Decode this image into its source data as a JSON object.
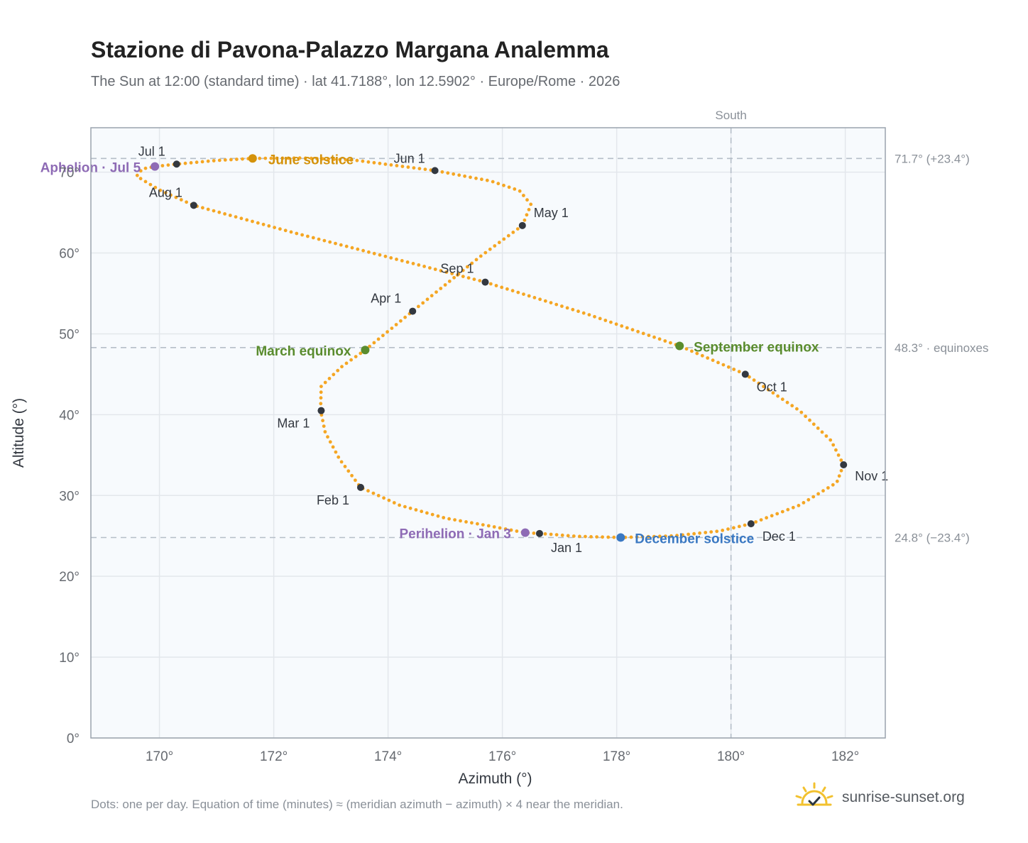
{
  "title": "Stazione di Pavona-Palazzo Margana Analemma",
  "subtitle": "The Sun at 12:00 (standard time) · lat 41.7188°, lon 12.5902° · Europe/Rome · 2026",
  "footnote": "Dots: one per day. Equation of time (minutes) ≈ (meridian azimuth − azimuth) × 4 near the meridian.",
  "brand": {
    "name": "sunrise-sunset.org",
    "icon": "sun-logo-icon"
  },
  "colors": {
    "curve": "#f5a623",
    "month_dot": "#333840",
    "aphelion": "#8e6bb5",
    "perihelion": "#8e6bb5",
    "june_solstice": "#d4920a",
    "december_solstice": "#3a78c2",
    "equinox": "#5a8c2e",
    "plot_bg": "#f7fafd",
    "grid": "#e3e7ec",
    "reference": "#b5bec8"
  },
  "chart_data": {
    "type": "scatter",
    "xlabel": "Azimuth (°)",
    "ylabel": "Altitude (°)",
    "xlim": [
      168.8,
      182.7
    ],
    "ylim": [
      0,
      75.5
    ],
    "grid": true,
    "x_ticks": [
      170,
      172,
      174,
      176,
      178,
      180,
      182
    ],
    "x_tick_labels": [
      "170°",
      "172°",
      "174°",
      "176°",
      "178°",
      "180°",
      "182°"
    ],
    "y_ticks": [
      0,
      10,
      20,
      30,
      40,
      50,
      60,
      70
    ],
    "y_tick_labels": [
      "0°",
      "10°",
      "20°",
      "30°",
      "40°",
      "50°",
      "60°",
      "70°"
    ],
    "meridian": {
      "azimuth": 180,
      "label": "South"
    },
    "reference_lines": [
      {
        "altitude": 71.7,
        "label": "71.7° (+23.4°)"
      },
      {
        "altitude": 48.3,
        "label": "48.3° · equinoxes"
      },
      {
        "altitude": 24.8,
        "label": "24.8° (−23.4°)"
      }
    ],
    "analemma_path": [
      [
        176.65,
        25.3
      ],
      [
        177.3,
        24.95
      ],
      [
        178.07,
        24.8
      ],
      [
        179.0,
        25.0
      ],
      [
        179.8,
        25.6
      ],
      [
        180.35,
        26.5
      ],
      [
        181.2,
        28.8
      ],
      [
        181.85,
        31.6
      ],
      [
        181.97,
        33.8
      ],
      [
        181.75,
        36.8
      ],
      [
        181.2,
        40.5
      ],
      [
        180.25,
        45.0
      ],
      [
        179.1,
        48.5
      ],
      [
        177.5,
        52.4
      ],
      [
        175.7,
        56.4
      ],
      [
        174.0,
        59.5
      ],
      [
        172.3,
        62.6
      ],
      [
        170.6,
        65.9
      ],
      [
        170.0,
        67.8
      ],
      [
        169.6,
        69.5
      ],
      [
        169.7,
        70.4
      ],
      [
        169.92,
        70.7
      ],
      [
        170.3,
        71.0
      ],
      [
        171.0,
        71.45
      ],
      [
        171.63,
        71.7
      ],
      [
        172.5,
        71.75
      ],
      [
        173.4,
        71.5
      ],
      [
        174.82,
        70.2
      ],
      [
        175.8,
        68.9
      ],
      [
        176.3,
        67.7
      ],
      [
        176.5,
        66.0
      ],
      [
        176.35,
        63.4
      ],
      [
        175.6,
        59.5
      ],
      [
        174.43,
        52.8
      ],
      [
        173.6,
        48.0
      ],
      [
        173.2,
        46.0
      ],
      [
        172.83,
        43.5
      ],
      [
        172.82,
        40.5
      ],
      [
        172.9,
        37.8
      ],
      [
        173.15,
        34.5
      ],
      [
        173.52,
        31.0
      ],
      [
        174.2,
        28.8
      ],
      [
        175.0,
        27.2
      ],
      [
        175.8,
        26.2
      ],
      [
        176.4,
        25.4
      ],
      [
        176.65,
        25.3
      ]
    ],
    "month_markers": [
      {
        "label": "Jan 1",
        "az": 176.65,
        "alt": 25.3
      },
      {
        "label": "Feb 1",
        "az": 173.52,
        "alt": 31.0
      },
      {
        "label": "Mar 1",
        "az": 172.83,
        "alt": 40.5
      },
      {
        "label": "Apr 1",
        "az": 174.43,
        "alt": 52.8
      },
      {
        "label": "May 1",
        "az": 176.35,
        "alt": 63.4
      },
      {
        "label": "Jun 1",
        "az": 174.82,
        "alt": 70.2
      },
      {
        "label": "Jul 1",
        "az": 170.3,
        "alt": 71.0
      },
      {
        "label": "Aug 1",
        "az": 170.6,
        "alt": 65.9
      },
      {
        "label": "Sep 1",
        "az": 175.7,
        "alt": 56.4
      },
      {
        "label": "Oct 1",
        "az": 180.25,
        "alt": 45.0
      },
      {
        "label": "Nov 1",
        "az": 181.97,
        "alt": 33.8
      },
      {
        "label": "Dec 1",
        "az": 180.35,
        "alt": 26.5
      }
    ],
    "events": [
      {
        "label": "Aphelion · Jul 5",
        "az": 169.92,
        "alt": 70.7,
        "color_key": "aphelion"
      },
      {
        "label": "June solstice",
        "az": 171.63,
        "alt": 71.7,
        "color_key": "june_solstice"
      },
      {
        "label": "March equinox",
        "az": 173.6,
        "alt": 48.0,
        "color_key": "equinox"
      },
      {
        "label": "September equinox",
        "az": 179.1,
        "alt": 48.5,
        "color_key": "equinox"
      },
      {
        "label": "Perihelion · Jan 3",
        "az": 176.4,
        "alt": 25.4,
        "color_key": "perihelion"
      },
      {
        "label": "December solstice",
        "az": 178.07,
        "alt": 24.8,
        "color_key": "december_solstice"
      }
    ]
  }
}
